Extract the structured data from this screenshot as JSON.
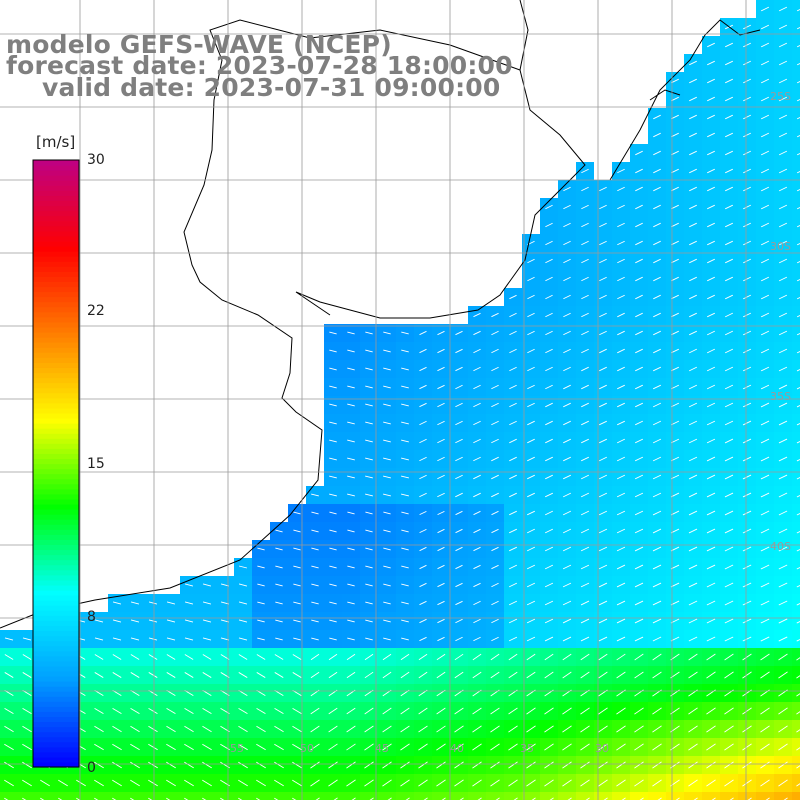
{
  "title": {
    "model": "modelo GEFS-WAVE (NCEP)",
    "forecast": "forecast date: 2023-07-28 18:00:00",
    "valid": "valid date: 2023-07-31 09:00:00"
  },
  "colorbar": {
    "unit": "[m/s]",
    "ticks": [
      {
        "label": "30",
        "value": 30
      },
      {
        "label": "22",
        "value": 22
      },
      {
        "label": "15",
        "value": 15
      },
      {
        "label": "8",
        "value": 8
      },
      {
        "label": "0",
        "value": 0
      }
    ],
    "min": 0,
    "max": 30,
    "colors": [
      "#0000ff",
      "#00a0ff",
      "#00ffff",
      "#00ff00",
      "#ffff00",
      "#ff8000",
      "#ff0000",
      "#c00080"
    ]
  },
  "grid_labels": {
    "lat": [
      "25S",
      "30S",
      "35S",
      "40S"
    ],
    "lon": [
      "55",
      "50",
      "45",
      "40",
      "35",
      "30"
    ]
  },
  "colors": {
    "land": "#ffffff",
    "coast": "#000000",
    "grid": "#9a9a9a",
    "arrow": "#ffffff",
    "title": "#7f7f7f"
  }
}
